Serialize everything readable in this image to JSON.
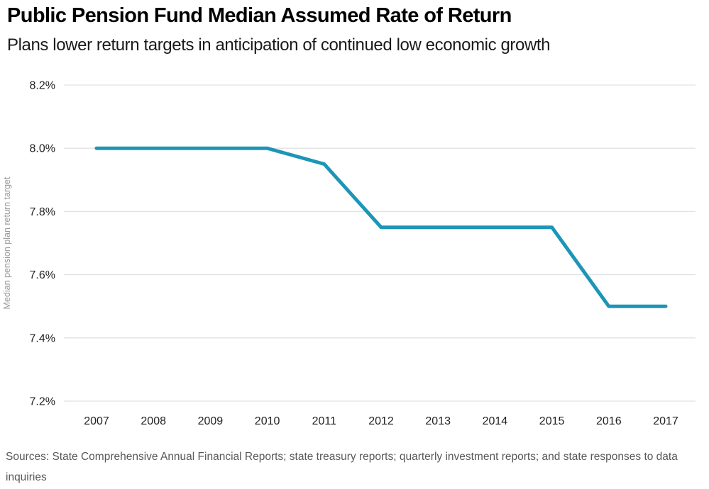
{
  "header": {
    "title": "Public Pension Fund Median Assumed Rate of Return",
    "subtitle": "Plans lower return targets in anticipation of continued low economic growth"
  },
  "footer": {
    "sources": "Sources: State Comprehensive Annual Financial Reports; state treasury reports; quarterly investment reports; and state responses to data inquiries"
  },
  "colors": {
    "line": "#1d95b7",
    "grid": "#e2e2e2",
    "tick_label": "#222222",
    "axis_title": "#9a9a9a",
    "title_text": "#000000",
    "subtitle_text": "#1a1a1a",
    "sources_text": "#58585a"
  },
  "chart_data": {
    "type": "line",
    "x": [
      2007,
      2008,
      2009,
      2010,
      2011,
      2012,
      2013,
      2014,
      2015,
      2016,
      2017
    ],
    "series": [
      {
        "name": "Median pension plan return target",
        "values": [
          8.0,
          8.0,
          8.0,
          8.0,
          7.95,
          7.75,
          7.75,
          7.75,
          7.75,
          7.5,
          7.5
        ]
      }
    ],
    "title": "Public Pension Fund Median Assumed Rate of Return",
    "subtitle": "Plans lower return targets in anticipation of continued low economic growth",
    "xlabel": "",
    "ylabel": "Median pension plan return target",
    "ylim": [
      7.2,
      8.2
    ],
    "yticks": [
      8.2,
      8.0,
      7.8,
      7.6,
      7.4,
      7.2
    ],
    "ytick_labels": [
      "8.2%",
      "8.0%",
      "7.8%",
      "7.6%",
      "7.4%",
      "7.2%"
    ],
    "xtick_labels": [
      "2007",
      "2008",
      "2009",
      "2010",
      "2011",
      "2012",
      "2013",
      "2014",
      "2015",
      "2016",
      "2017"
    ],
    "grid": true,
    "legend_position": "none",
    "line_width": 5
  }
}
